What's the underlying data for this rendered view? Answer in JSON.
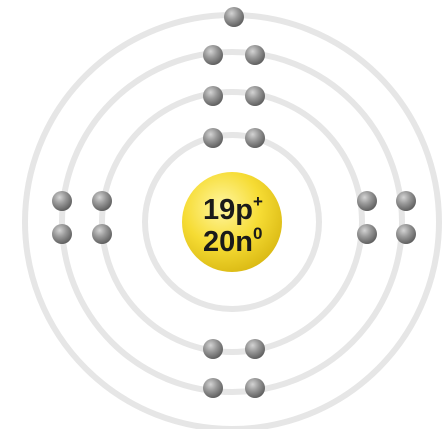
{
  "atom": {
    "nucleus": {
      "protons": "19",
      "proton_symbol": "p",
      "proton_charge": "+",
      "neutrons": "20",
      "neutron_symbol": "n",
      "neutron_charge": "0"
    },
    "shells": [
      {
        "electrons": 2
      },
      {
        "electrons": 8
      },
      {
        "electrons": 8
      },
      {
        "electrons": 1
      }
    ],
    "colors": {
      "shell": "#e6e6e6",
      "electron_dark": "#6e6e6e",
      "electron_light": "#c9c9c9",
      "nucleus_light": "#fff27a",
      "nucleus_dark": "#e3c316"
    }
  }
}
